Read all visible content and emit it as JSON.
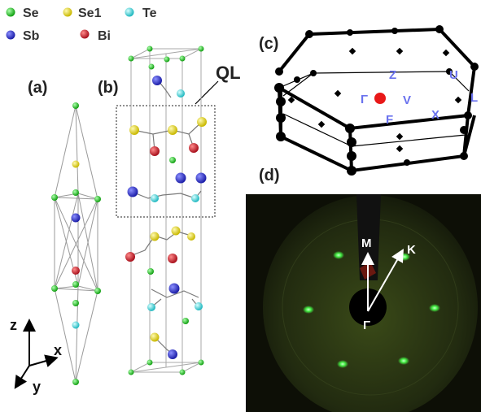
{
  "legend": [
    {
      "symbol": "Se",
      "color": "#22cc22"
    },
    {
      "symbol": "Se1",
      "color": "#e8e020"
    },
    {
      "symbol": "Te",
      "color": "#33dddd"
    },
    {
      "symbol": "Sb",
      "color": "#5560ee"
    },
    {
      "symbol": "Bi",
      "color": "#ee2222"
    }
  ],
  "panels": {
    "a": "(a)",
    "b": "(b)",
    "c": "(c)",
    "d": "(d)"
  },
  "ql_label": "QL",
  "axes": {
    "z": "z",
    "x": "x",
    "y": "y"
  },
  "bz_points": {
    "Z": "Z",
    "U": "U",
    "L": "L",
    "gamma": "Γ",
    "V": "V",
    "F": "F",
    "X": "X"
  },
  "leed": {
    "M": "M",
    "K": "K",
    "gamma": "Γ"
  },
  "colors": {
    "Se": "#22cc22",
    "Se1": "#e8e020",
    "Te": "#33dddd",
    "Sb": "#3333cc",
    "Bi": "#cc1f2f",
    "bz_label": "#6a72ee",
    "gamma_dot": "#e81818",
    "leed_bg": "#1c2310",
    "leed_spot": "#55ee55"
  }
}
